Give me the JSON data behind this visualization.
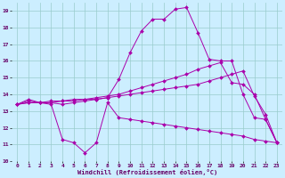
{
  "xlabel": "Windchill (Refroidissement éolien,°C)",
  "background_color": "#cceeff",
  "grid_color": "#99cccc",
  "line_color": "#aa00aa",
  "xlim_min": -0.5,
  "xlim_max": 23.5,
  "ylim_min": 10,
  "ylim_max": 19.5,
  "yticks": [
    10,
    11,
    12,
    13,
    14,
    15,
    16,
    17,
    18,
    19
  ],
  "xticks": [
    0,
    1,
    2,
    3,
    4,
    5,
    6,
    7,
    8,
    9,
    10,
    11,
    12,
    13,
    14,
    15,
    16,
    17,
    18,
    19,
    20,
    21,
    22,
    23
  ],
  "line1_x": [
    0,
    1,
    2,
    3,
    4,
    5,
    6,
    7,
    8,
    9,
    10,
    11,
    12,
    13,
    14,
    15,
    16,
    17,
    18,
    19,
    20,
    21,
    22,
    23
  ],
  "line1_y": [
    13.4,
    13.7,
    13.5,
    13.4,
    11.3,
    11.1,
    10.5,
    11.1,
    13.5,
    12.6,
    12.5,
    12.4,
    12.3,
    12.2,
    12.1,
    12.0,
    11.9,
    11.8,
    11.7,
    11.6,
    11.5,
    11.3,
    11.2,
    11.1
  ],
  "line2_x": [
    0,
    1,
    2,
    3,
    4,
    5,
    6,
    7,
    8,
    9,
    10,
    11,
    12,
    13,
    14,
    15,
    16,
    17,
    18,
    19,
    20,
    21,
    22,
    23
  ],
  "line2_y": [
    13.4,
    13.5,
    13.5,
    13.5,
    13.6,
    13.6,
    13.7,
    13.7,
    13.8,
    13.9,
    14.0,
    14.1,
    14.2,
    14.3,
    14.4,
    14.5,
    14.6,
    14.8,
    15.0,
    15.2,
    15.4,
    13.9,
    12.8,
    11.1
  ],
  "line3_x": [
    0,
    1,
    2,
    3,
    4,
    5,
    6,
    7,
    8,
    9,
    10,
    11,
    12,
    13,
    14,
    15,
    16,
    17,
    18,
    19,
    20,
    21,
    22,
    23
  ],
  "line3_y": [
    13.4,
    13.5,
    13.5,
    13.6,
    13.6,
    13.7,
    13.7,
    13.8,
    13.9,
    14.0,
    14.2,
    14.4,
    14.6,
    14.8,
    15.0,
    15.2,
    15.5,
    15.7,
    15.9,
    14.7,
    14.6,
    14.0,
    12.5,
    11.1
  ],
  "line4_x": [
    0,
    1,
    2,
    3,
    4,
    5,
    6,
    7,
    8,
    9,
    10,
    11,
    12,
    13,
    14,
    15,
    16,
    17,
    18,
    19,
    20,
    21,
    22,
    23
  ],
  "line4_y": [
    13.4,
    13.6,
    13.5,
    13.5,
    13.4,
    13.5,
    13.6,
    13.7,
    13.8,
    14.9,
    16.5,
    17.8,
    18.5,
    18.5,
    19.1,
    19.2,
    17.7,
    16.1,
    16.0,
    16.0,
    14.0,
    12.6,
    12.5,
    11.1
  ]
}
